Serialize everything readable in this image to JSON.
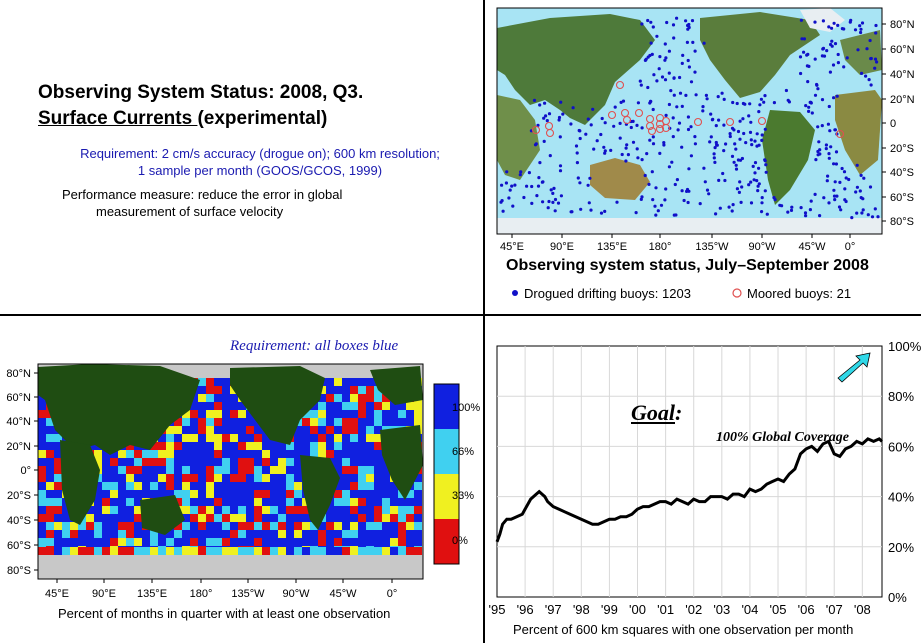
{
  "title": {
    "line1": "Observing System Status:  2008, Q3.",
    "line2_underlined": "Surface Currents ",
    "line2_rest": "(experimental)"
  },
  "requirement_text": {
    "line1": "Requirement: 2 cm/s accuracy (drogue on); 600 km resolution;",
    "line2": "1 sample per month (GOOS/GCOS, 1999)"
  },
  "performance_text": {
    "line1": "Performance measure: reduce the error in global",
    "line2": "measurement of surface velocity"
  },
  "colors": {
    "ocean": "#a8e4f4",
    "land": "#1f4d12",
    "drifter": "#1010c8",
    "moored": "#e05050",
    "box_100": "#1020e0",
    "box_66": "#40d0f0",
    "box_33": "#f0f020",
    "box_0": "#e01010",
    "no_data": "#c8c8c8",
    "arrow": "#30d8e8"
  },
  "chart_data": [
    {
      "type": "scatter",
      "title": "Observing system status, July–September 2008",
      "x_ticks": [
        "45°E",
        "90°E",
        "135°E",
        "180°",
        "135°W",
        "90°W",
        "45°W",
        "0°"
      ],
      "y_ticks": [
        "80°N",
        "60°N",
        "40°N",
        "20°N",
        "0",
        "20°S",
        "40°S",
        "60°S",
        "80°S"
      ],
      "series": [
        {
          "name": "Drogued drifting buoys: 1203"
        },
        {
          "name": "Moored buoys: 21"
        }
      ]
    },
    {
      "type": "heatmap",
      "title": "Requirement: all boxes blue",
      "xlabel": "Percent of months in quarter with at least one observation",
      "x_ticks": [
        "45°E",
        "90°E",
        "135°E",
        "180°",
        "135°W",
        "90°W",
        "45°W",
        "0°"
      ],
      "y_ticks": [
        "80°N",
        "60°N",
        "40°N",
        "20°N",
        "0°",
        "20°S",
        "40°S",
        "60°S",
        "80°S"
      ],
      "colorbar_labels": [
        "100%",
        "66%",
        "33%",
        "0%"
      ]
    },
    {
      "type": "line",
      "xlabel": "Percent of 600 km squares with one observation per month",
      "x_ticks": [
        "'95",
        "'96",
        "'97",
        "'98",
        "'99",
        "'00",
        "'01",
        "'02",
        "'03",
        "'04",
        "'05",
        "'06",
        "'07",
        "'08"
      ],
      "y_ticks": [
        "100%",
        "80%",
        "60%",
        "40%",
        "20%",
        "0%"
      ],
      "ylim": [
        0,
        100
      ],
      "annotation_goal": "Goal",
      "annotation_goal_colon": ":",
      "annotation_sub": "100% Global Coverage",
      "x": [
        1995.0,
        1995.1,
        1995.2,
        1995.35,
        1995.5,
        1995.7,
        1995.9,
        1996.0,
        1996.1,
        1996.2,
        1996.3,
        1996.4,
        1996.5,
        1996.6,
        1996.7,
        1996.8,
        1996.9,
        1997.0,
        1997.2,
        1997.4,
        1997.6,
        1997.8,
        1998.0,
        1998.2,
        1998.4,
        1998.6,
        1998.8,
        1999.0,
        1999.2,
        1999.4,
        1999.6,
        1999.8,
        2000.0,
        2000.2,
        2000.4,
        2000.6,
        2000.8,
        2001.0,
        2001.2,
        2001.4,
        2001.6,
        2001.8,
        2002.0,
        2002.2,
        2002.4,
        2002.6,
        2002.8,
        2003.0,
        2003.2,
        2003.4,
        2003.6,
        2003.8,
        2004.0,
        2004.2,
        2004.4,
        2004.6,
        2004.8,
        2005.0,
        2005.2,
        2005.4,
        2005.6,
        2005.8,
        2006.0,
        2006.2,
        2006.4,
        2006.6,
        2006.8,
        2007.0,
        2007.2,
        2007.4,
        2007.6,
        2007.8,
        2008.0,
        2008.2,
        2008.4,
        2008.6,
        2008.7
      ],
      "series": [
        {
          "values": [
            22,
            25,
            29,
            31,
            31,
            32,
            33,
            35,
            37,
            39,
            40,
            41,
            42,
            41,
            40,
            38,
            37,
            36,
            35,
            34,
            33,
            32,
            31,
            30,
            29,
            29,
            30,
            31,
            31,
            32,
            32,
            33,
            35,
            36,
            36,
            37,
            38,
            38,
            37,
            39,
            38,
            37,
            39,
            38,
            38,
            40,
            40,
            40,
            39,
            41,
            41,
            40,
            43,
            42,
            43,
            45,
            46,
            47,
            46,
            49,
            51,
            57,
            59,
            60,
            58,
            61,
            62,
            57,
            56,
            59,
            60,
            62,
            61,
            63,
            62,
            63,
            62
          ]
        }
      ]
    }
  ]
}
